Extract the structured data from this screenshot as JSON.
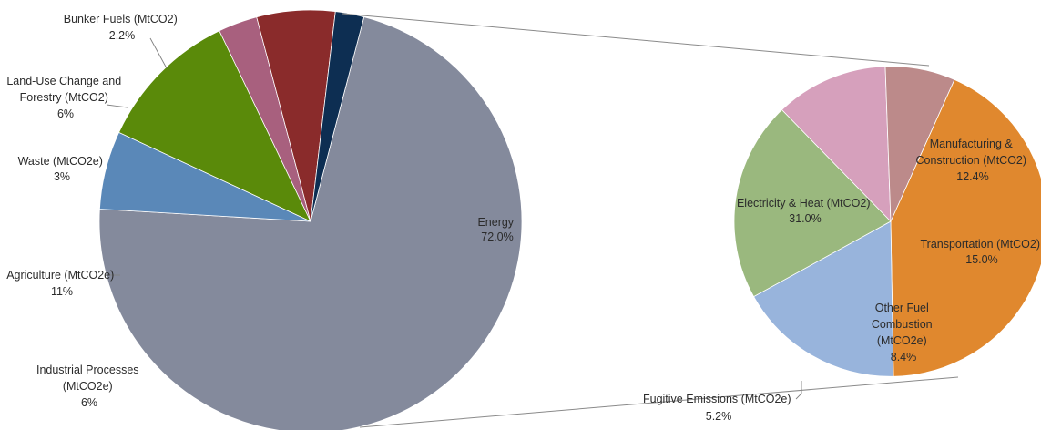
{
  "chart_data": {
    "type": "pie",
    "subtype": "pie-of-pie",
    "main": {
      "slices": [
        {
          "label": "Energy",
          "value": "72.0%",
          "share": 72.0,
          "color": "#848a9c"
        },
        {
          "label": "Industrial Processes (MtCO2e)",
          "value": "6%",
          "share": 6.0,
          "color": "#5a88b8"
        },
        {
          "label": "Agriculture (MtCO2e)",
          "value": "11%",
          "share": 11.0,
          "color": "#5a8a0a"
        },
        {
          "label": "Waste (MtCO2e)",
          "value": "3%",
          "share": 3.0,
          "color": "#a8607e"
        },
        {
          "label": "Land-Use Change and Forestry (MtCO2)",
          "value": "6%",
          "share": 6.0,
          "color": "#8a2b2b"
        },
        {
          "label": "Bunker Fuels (MtCO2)",
          "value": "2.2%",
          "share": 2.2,
          "color": "#0d2e52"
        }
      ]
    },
    "breakdown": {
      "parent": "Energy",
      "slices": [
        {
          "label": "Electricity & Heat (MtCO2)",
          "value": "31.0%",
          "share": 31.0,
          "color": "#e0882e"
        },
        {
          "label": "Manufacturing & Construction (MtCO2)",
          "value": "12.4%",
          "share": 12.4,
          "color": "#98b4dc"
        },
        {
          "label": "Transportation (MtCO2)",
          "value": "15.0%",
          "share": 15.0,
          "color": "#9ab87e"
        },
        {
          "label": "Other Fuel Combustion (MtCO2e)",
          "value": "8.4%",
          "share": 8.4,
          "color": "#d6a0bc"
        },
        {
          "label": "Fugitive Emissions (MtCO2e)",
          "value": "5.2%",
          "share": 5.2,
          "color": "#bc8a8a"
        }
      ]
    }
  }
}
